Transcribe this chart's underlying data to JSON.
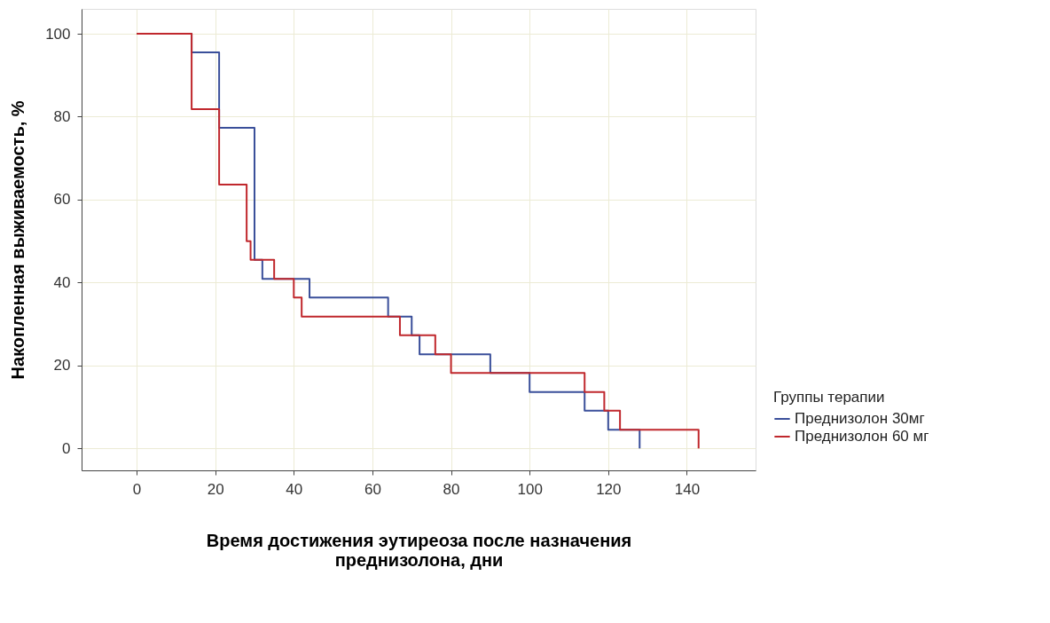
{
  "chart_data": {
    "type": "step",
    "xlabel": "Время достижения эутиреоза после назначения\nпреднизолона, дни",
    "ylabel": "Накопленная выживаемость, %",
    "legend_title": "Группы терапии",
    "series": [
      {
        "name": "Преднизолон 30мг",
        "color": "#3a4f9a",
        "x": [
          0,
          14,
          21,
          30,
          32,
          44,
          64,
          70,
          72,
          90,
          100,
          114,
          120,
          128
        ],
        "values": [
          100,
          95.5,
          77.3,
          45.5,
          40.9,
          36.4,
          31.8,
          27.3,
          22.7,
          18.2,
          13.6,
          9.1,
          4.5,
          0
        ]
      },
      {
        "name": "Преднизолон 60 мг",
        "color": "#c0282d",
        "x": [
          0,
          14,
          21,
          28,
          29,
          35,
          40,
          42,
          67,
          76,
          80,
          114,
          119,
          123,
          143
        ],
        "values": [
          100,
          81.8,
          63.6,
          50.0,
          45.5,
          40.9,
          36.4,
          31.8,
          27.3,
          22.7,
          18.2,
          13.6,
          9.1,
          4.5,
          0
        ]
      }
    ],
    "xlim": [
      -14,
      157.5
    ],
    "xticks": [
      0,
      20,
      40,
      60,
      80,
      100,
      120,
      140
    ],
    "ylim": [
      -5.3,
      106
    ],
    "yticks": [
      0,
      20,
      40,
      60,
      80,
      100
    ],
    "grid": true,
    "legend": "bottom right",
    "line_style": "solid",
    "marker": "none"
  }
}
